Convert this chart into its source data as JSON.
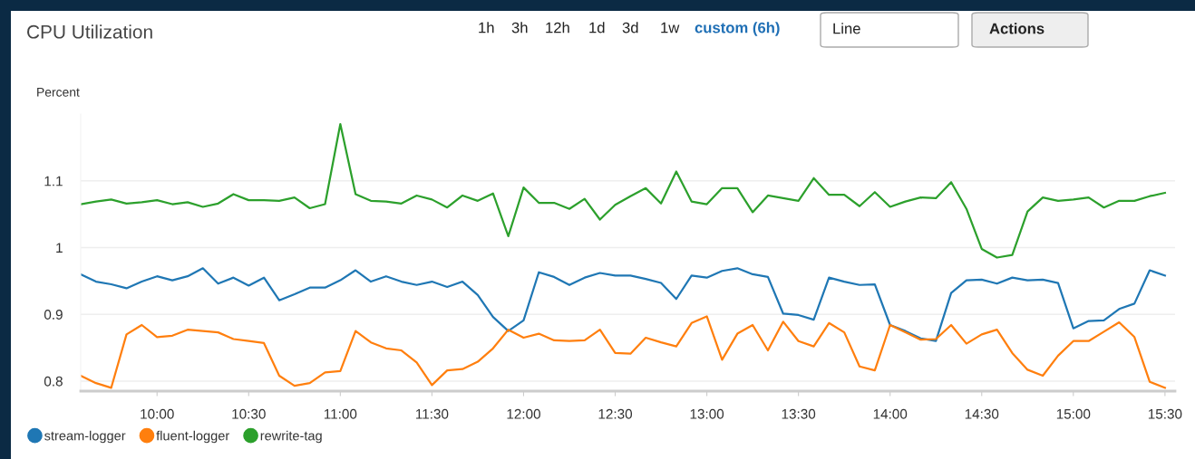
{
  "chart_data": {
    "type": "line",
    "title": "CPU Utilization",
    "ylabel": "Percent",
    "annotations": [
      "1h",
      "3h",
      "12h",
      "1d",
      "3d",
      "1w",
      "custom (6h)",
      "Line",
      "Actions"
    ],
    "x": [
      9.5833,
      9.6667,
      9.75,
      9.8333,
      9.9167,
      10,
      10.0833,
      10.1667,
      10.25,
      10.3333,
      10.4167,
      10.5,
      10.5833,
      10.6667,
      10.75,
      10.8333,
      10.9167,
      11,
      11.0833,
      11.1667,
      11.25,
      11.3333,
      11.4167,
      11.5,
      11.5833,
      11.6667,
      11.75,
      11.8333,
      11.9167,
      12,
      12.0833,
      12.1667,
      12.25,
      12.3333,
      12.4167,
      12.5,
      12.5833,
      12.6667,
      12.75,
      12.8333,
      12.9167,
      13,
      13.0833,
      13.1667,
      13.25,
      13.3333,
      13.4167,
      13.5,
      13.5833,
      13.6667,
      13.75,
      13.8333,
      13.9167,
      14,
      14.0833,
      14.1667,
      14.25,
      14.3333,
      14.4167,
      14.5,
      14.5833,
      14.6667,
      14.75,
      14.8333,
      14.9167,
      15,
      15.0833,
      15.1667,
      15.25,
      15.3333,
      15.4167,
      15.5
    ],
    "series": [
      {
        "name": "stream-logger",
        "color": "#1f77b4",
        "values": [
          0.96,
          0.949,
          0.945,
          0.939,
          0.949,
          0.957,
          0.951,
          0.957,
          0.969,
          0.946,
          0.955,
          0.943,
          0.955,
          0.921,
          0.93,
          0.94,
          0.94,
          0.951,
          0.966,
          0.949,
          0.957,
          0.949,
          0.944,
          0.949,
          0.941,
          0.949,
          0.929,
          0.896,
          0.875,
          0.891,
          0.963,
          0.956,
          0.944,
          0.955,
          0.962,
          0.958,
          0.958,
          0.953,
          0.947,
          0.923,
          0.958,
          0.955,
          0.965,
          0.969,
          0.96,
          0.956,
          0.901,
          0.899,
          0.892,
          0.955,
          0.949,
          0.944,
          0.945,
          0.884,
          0.875,
          0.864,
          0.86,
          0.932,
          0.951,
          0.952,
          0.946,
          0.955,
          0.951,
          0.952,
          0.947,
          0.879,
          0.89,
          0.891,
          0.908,
          0.916,
          0.966,
          0.958
        ]
      },
      {
        "name": "fluent-logger",
        "color": "#ff7f0e",
        "values": [
          0.808,
          0.797,
          0.79,
          0.87,
          0.884,
          0.866,
          0.868,
          0.877,
          0.875,
          0.873,
          0.863,
          0.86,
          0.857,
          0.808,
          0.793,
          0.797,
          0.813,
          0.815,
          0.875,
          0.858,
          0.849,
          0.846,
          0.828,
          0.794,
          0.816,
          0.818,
          0.829,
          0.849,
          0.877,
          0.865,
          0.871,
          0.861,
          0.86,
          0.861,
          0.877,
          0.842,
          0.841,
          0.865,
          0.858,
          0.852,
          0.887,
          0.897,
          0.832,
          0.871,
          0.884,
          0.846,
          0.889,
          0.86,
          0.852,
          0.887,
          0.873,
          0.822,
          0.816,
          0.884,
          0.873,
          0.862,
          0.863,
          0.884,
          0.856,
          0.87,
          0.877,
          0.842,
          0.817,
          0.808,
          0.838,
          0.86,
          0.86,
          0.874,
          0.888,
          0.866,
          0.799,
          0.79
        ]
      },
      {
        "name": "rewrite-tag",
        "color": "#2ca02c",
        "values": [
          1.065,
          1.069,
          1.072,
          1.066,
          1.068,
          1.071,
          1.065,
          1.068,
          1.061,
          1.066,
          1.08,
          1.071,
          1.071,
          1.07,
          1.075,
          1.059,
          1.065,
          1.185,
          1.08,
          1.07,
          1.069,
          1.066,
          1.078,
          1.072,
          1.06,
          1.078,
          1.07,
          1.081,
          1.017,
          1.09,
          1.067,
          1.067,
          1.058,
          1.073,
          1.042,
          1.064,
          1.077,
          1.089,
          1.066,
          1.114,
          1.069,
          1.065,
          1.089,
          1.089,
          1.053,
          1.078,
          1.074,
          1.07,
          1.104,
          1.079,
          1.079,
          1.062,
          1.083,
          1.061,
          1.069,
          1.075,
          1.074,
          1.098,
          1.058,
          0.998,
          0.985,
          0.989,
          1.054,
          1.075,
          1.07,
          1.072,
          1.075,
          1.06,
          1.07,
          1.07,
          1.077,
          1.082
        ]
      }
    ],
    "xlim": [
      9.5833,
      15.555
    ],
    "ylim": [
      0.785,
      1.2
    ],
    "xticks": [
      {
        "value": 10,
        "label": "10:00"
      },
      {
        "value": 10.5,
        "label": "10:30"
      },
      {
        "value": 11,
        "label": "11:00"
      },
      {
        "value": 11.5,
        "label": "11:30"
      },
      {
        "value": 12,
        "label": "12:00"
      },
      {
        "value": 12.5,
        "label": "12:30"
      },
      {
        "value": 13,
        "label": "13:00"
      },
      {
        "value": 13.5,
        "label": "13:30"
      },
      {
        "value": 14,
        "label": "14:00"
      },
      {
        "value": 14.5,
        "label": "14:30"
      },
      {
        "value": 15,
        "label": "15:00"
      },
      {
        "value": 15.5,
        "label": "15:30"
      }
    ],
    "yticks": [
      0.8,
      0.9,
      1,
      1.1
    ],
    "grid": "y",
    "legend": "bottom left",
    "marker": "none",
    "line_style": "solid"
  }
}
